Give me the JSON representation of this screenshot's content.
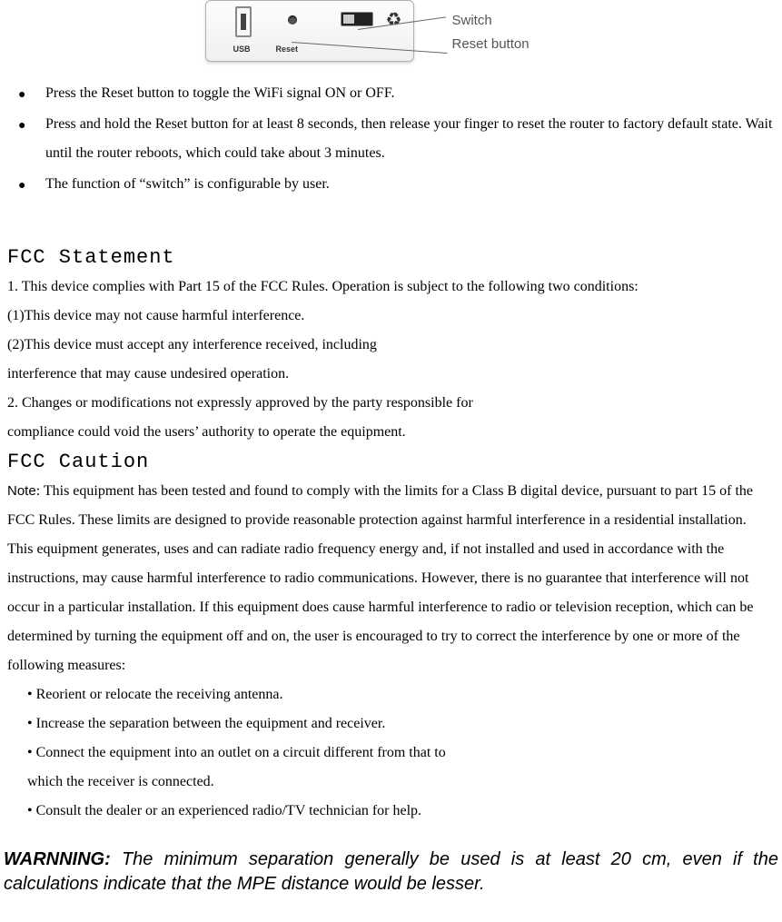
{
  "diagram": {
    "usb_label": "USB",
    "reset_label": "Reset",
    "callout_switch": "Switch",
    "callout_reset": "Reset button"
  },
  "bullets": [
    "Press the Reset button to toggle the WiFi signal ON or OFF.",
    "Press and hold the Reset button for at least 8 seconds, then release your finger to reset the router to factory default state. Wait until the router reboots, which could take about 3 minutes.",
    "The function of “switch” is configurable by user."
  ],
  "fcc_statement": {
    "heading": "FCC Statement",
    "lines": [
      "1. This device complies with Part 15 of the FCC Rules. Operation is subject to the following two conditions:",
      "(1)This device may not cause harmful interference.",
      "(2)This device must accept any interference received, including",
      "interference that may cause undesired operation.",
      "2. Changes or modifications not expressly approved by the party responsible for",
      "compliance could void the users’ authority to operate the equipment."
    ]
  },
  "fcc_caution": {
    "heading": "FCC Caution",
    "note_label": "Note",
    "note_body": ": This equipment has been tested and found to comply with the limits for a Class B digital device, pursuant to part 15 of the FCC Rules. These limits are designed to provide reasonable protection against harmful interference in a residential installation. This equipment generates, uses and can radiate radio frequency energy and, if not installed and used in accordance with the instructions, may cause harmful interference to radio communications. However, there is no guarantee that interference will not occur in a particular installation. If this equipment does cause harmful interference to radio or television reception, which can be determined by turning the equipment off and on, the user is encouraged to try to correct the interference by one or more of the following measures:",
    "measures": [
      "Reorient or relocate the receiving antenna.",
      "Increase the separation between the equipment and receiver.",
      "Connect the equipment into an outlet on a circuit different from that to"
    ],
    "measure_cont": "which the receiver is connected.",
    "measure_last": "Consult the dealer or an experienced radio/TV technician for help."
  },
  "warning": {
    "lead": "WARNNING:",
    "body": " The minimum separation generally be used is at least 20 cm, even if the calculations indicate that the MPE distance would be lesser."
  }
}
